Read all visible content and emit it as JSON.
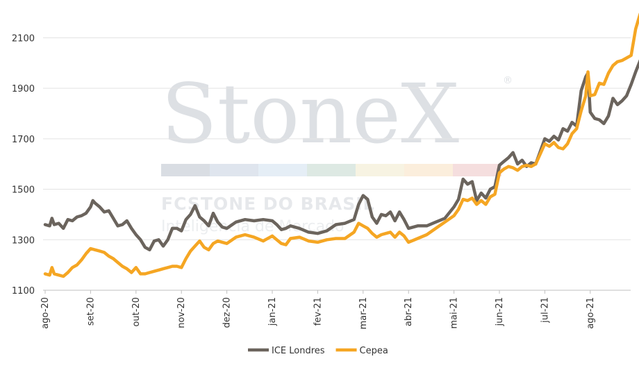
{
  "watermark": {
    "brand": "StoneX",
    "registered": "®",
    "company": "FCSTONE DO BRASIL",
    "tagline": "Inteligência de Mercado",
    "stripe_colors": [
      "#d9dde3",
      "#dfe5ee",
      "#e5eef6",
      "#dde9e3",
      "#f7f3e2",
      "#fbeedc",
      "#f5dede"
    ]
  },
  "chart_data": {
    "type": "line",
    "title": "",
    "xlabel": "",
    "ylabel": "",
    "ylim": [
      1100,
      2200
    ],
    "yticks": [
      1100,
      1300,
      1500,
      1700,
      1900,
      2100
    ],
    "ytick_labels": [
      "1100",
      "1300",
      "1500",
      "1700",
      "1900",
      "2100"
    ],
    "xtick_labels": [
      "ago-20",
      "set-20",
      "out-20",
      "nov-20",
      "dez-20",
      "jan-21",
      "fev-21",
      "mar-21",
      "abr-21",
      "mai-21",
      "jun-21",
      "jul-21",
      "ago-21"
    ],
    "grid": "horizontal",
    "legend_position": "bottom",
    "series": [
      {
        "name": "ICE Londres",
        "color": "#6b645d",
        "values": [
          [
            0,
            1360
          ],
          [
            0.1,
            1355
          ],
          [
            0.15,
            1385
          ],
          [
            0.2,
            1360
          ],
          [
            0.3,
            1365
          ],
          [
            0.4,
            1345
          ],
          [
            0.5,
            1380
          ],
          [
            0.6,
            1375
          ],
          [
            0.7,
            1390
          ],
          [
            0.8,
            1395
          ],
          [
            0.9,
            1405
          ],
          [
            1.0,
            1430
          ],
          [
            1.05,
            1455
          ],
          [
            1.1,
            1445
          ],
          [
            1.2,
            1430
          ],
          [
            1.3,
            1410
          ],
          [
            1.4,
            1415
          ],
          [
            1.5,
            1385
          ],
          [
            1.6,
            1355
          ],
          [
            1.7,
            1360
          ],
          [
            1.8,
            1375
          ],
          [
            1.9,
            1345
          ],
          [
            2.0,
            1320
          ],
          [
            2.1,
            1300
          ],
          [
            2.2,
            1270
          ],
          [
            2.3,
            1260
          ],
          [
            2.4,
            1295
          ],
          [
            2.5,
            1300
          ],
          [
            2.6,
            1275
          ],
          [
            2.7,
            1300
          ],
          [
            2.8,
            1345
          ],
          [
            2.9,
            1345
          ],
          [
            3.0,
            1335
          ],
          [
            3.1,
            1380
          ],
          [
            3.2,
            1400
          ],
          [
            3.3,
            1435
          ],
          [
            3.4,
            1390
          ],
          [
            3.5,
            1375
          ],
          [
            3.6,
            1355
          ],
          [
            3.7,
            1405
          ],
          [
            3.8,
            1370
          ],
          [
            3.9,
            1350
          ],
          [
            4.0,
            1345
          ],
          [
            4.2,
            1370
          ],
          [
            4.4,
            1380
          ],
          [
            4.6,
            1375
          ],
          [
            4.8,
            1380
          ],
          [
            5.0,
            1375
          ],
          [
            5.1,
            1360
          ],
          [
            5.2,
            1340
          ],
          [
            5.3,
            1345
          ],
          [
            5.4,
            1355
          ],
          [
            5.6,
            1345
          ],
          [
            5.8,
            1330
          ],
          [
            6.0,
            1325
          ],
          [
            6.2,
            1335
          ],
          [
            6.4,
            1360
          ],
          [
            6.6,
            1365
          ],
          [
            6.8,
            1380
          ],
          [
            6.9,
            1440
          ],
          [
            7.0,
            1475
          ],
          [
            7.1,
            1460
          ],
          [
            7.2,
            1390
          ],
          [
            7.3,
            1365
          ],
          [
            7.4,
            1400
          ],
          [
            7.5,
            1395
          ],
          [
            7.6,
            1410
          ],
          [
            7.7,
            1375
          ],
          [
            7.8,
            1410
          ],
          [
            7.9,
            1380
          ],
          [
            8.0,
            1345
          ],
          [
            8.2,
            1355
          ],
          [
            8.4,
            1355
          ],
          [
            8.6,
            1370
          ],
          [
            8.8,
            1385
          ],
          [
            9.0,
            1430
          ],
          [
            9.1,
            1460
          ],
          [
            9.2,
            1540
          ],
          [
            9.3,
            1520
          ],
          [
            9.4,
            1530
          ],
          [
            9.5,
            1455
          ],
          [
            9.6,
            1485
          ],
          [
            9.7,
            1465
          ],
          [
            9.8,
            1500
          ],
          [
            9.9,
            1510
          ],
          [
            10.0,
            1595
          ],
          [
            10.1,
            1610
          ],
          [
            10.2,
            1625
          ],
          [
            10.3,
            1645
          ],
          [
            10.4,
            1600
          ],
          [
            10.5,
            1615
          ],
          [
            10.6,
            1590
          ],
          [
            10.7,
            1605
          ],
          [
            10.8,
            1600
          ],
          [
            10.9,
            1650
          ],
          [
            11.0,
            1700
          ],
          [
            11.1,
            1690
          ],
          [
            11.2,
            1710
          ],
          [
            11.3,
            1695
          ],
          [
            11.4,
            1740
          ],
          [
            11.5,
            1730
          ],
          [
            11.6,
            1765
          ],
          [
            11.7,
            1750
          ],
          [
            11.8,
            1890
          ],
          [
            11.9,
            1945
          ],
          [
            11.95,
            1960
          ],
          [
            12.0,
            1805
          ],
          [
            12.1,
            1780
          ],
          [
            12.2,
            1775
          ],
          [
            12.3,
            1760
          ],
          [
            12.4,
            1790
          ],
          [
            12.5,
            1860
          ],
          [
            12.6,
            1835
          ],
          [
            12.7,
            1850
          ],
          [
            12.8,
            1870
          ],
          [
            12.9,
            1915
          ],
          [
            13.0,
            1965
          ],
          [
            13.1,
            2010
          ]
        ]
      },
      {
        "name": "Cepea",
        "color": "#f5a623",
        "values": [
          [
            0,
            1165
          ],
          [
            0.1,
            1160
          ],
          [
            0.15,
            1190
          ],
          [
            0.2,
            1165
          ],
          [
            0.3,
            1160
          ],
          [
            0.4,
            1155
          ],
          [
            0.5,
            1170
          ],
          [
            0.6,
            1190
          ],
          [
            0.7,
            1200
          ],
          [
            0.8,
            1220
          ],
          [
            0.9,
            1245
          ],
          [
            1.0,
            1265
          ],
          [
            1.1,
            1260
          ],
          [
            1.2,
            1255
          ],
          [
            1.3,
            1250
          ],
          [
            1.4,
            1235
          ],
          [
            1.5,
            1225
          ],
          [
            1.6,
            1210
          ],
          [
            1.7,
            1195
          ],
          [
            1.8,
            1185
          ],
          [
            1.9,
            1170
          ],
          [
            2.0,
            1190
          ],
          [
            2.1,
            1165
          ],
          [
            2.2,
            1165
          ],
          [
            2.3,
            1170
          ],
          [
            2.4,
            1175
          ],
          [
            2.5,
            1180
          ],
          [
            2.6,
            1185
          ],
          [
            2.7,
            1190
          ],
          [
            2.8,
            1195
          ],
          [
            2.9,
            1195
          ],
          [
            3.0,
            1190
          ],
          [
            3.1,
            1225
          ],
          [
            3.2,
            1255
          ],
          [
            3.3,
            1275
          ],
          [
            3.4,
            1295
          ],
          [
            3.5,
            1270
          ],
          [
            3.6,
            1260
          ],
          [
            3.7,
            1285
          ],
          [
            3.8,
            1295
          ],
          [
            3.9,
            1290
          ],
          [
            4.0,
            1285
          ],
          [
            4.2,
            1310
          ],
          [
            4.4,
            1320
          ],
          [
            4.6,
            1310
          ],
          [
            4.8,
            1295
          ],
          [
            5.0,
            1315
          ],
          [
            5.1,
            1300
          ],
          [
            5.2,
            1285
          ],
          [
            5.3,
            1280
          ],
          [
            5.4,
            1305
          ],
          [
            5.6,
            1310
          ],
          [
            5.8,
            1295
          ],
          [
            6.0,
            1290
          ],
          [
            6.2,
            1300
          ],
          [
            6.4,
            1305
          ],
          [
            6.6,
            1305
          ],
          [
            6.8,
            1330
          ],
          [
            6.9,
            1365
          ],
          [
            7.0,
            1355
          ],
          [
            7.1,
            1345
          ],
          [
            7.2,
            1325
          ],
          [
            7.3,
            1310
          ],
          [
            7.4,
            1320
          ],
          [
            7.5,
            1325
          ],
          [
            7.6,
            1330
          ],
          [
            7.7,
            1310
          ],
          [
            7.8,
            1330
          ],
          [
            7.9,
            1315
          ],
          [
            8.0,
            1290
          ],
          [
            8.2,
            1305
          ],
          [
            8.4,
            1320
          ],
          [
            8.6,
            1345
          ],
          [
            8.8,
            1370
          ],
          [
            9.0,
            1395
          ],
          [
            9.1,
            1420
          ],
          [
            9.2,
            1460
          ],
          [
            9.3,
            1455
          ],
          [
            9.4,
            1465
          ],
          [
            9.5,
            1440
          ],
          [
            9.6,
            1455
          ],
          [
            9.7,
            1440
          ],
          [
            9.8,
            1470
          ],
          [
            9.9,
            1480
          ],
          [
            10.0,
            1565
          ],
          [
            10.1,
            1580
          ],
          [
            10.2,
            1590
          ],
          [
            10.3,
            1585
          ],
          [
            10.4,
            1575
          ],
          [
            10.5,
            1590
          ],
          [
            10.6,
            1595
          ],
          [
            10.7,
            1590
          ],
          [
            10.8,
            1600
          ],
          [
            10.9,
            1640
          ],
          [
            11.0,
            1680
          ],
          [
            11.1,
            1670
          ],
          [
            11.2,
            1685
          ],
          [
            11.3,
            1665
          ],
          [
            11.4,
            1660
          ],
          [
            11.5,
            1680
          ],
          [
            11.6,
            1720
          ],
          [
            11.7,
            1740
          ],
          [
            11.8,
            1810
          ],
          [
            11.9,
            1870
          ],
          [
            11.95,
            1965
          ],
          [
            12.0,
            1870
          ],
          [
            12.1,
            1875
          ],
          [
            12.2,
            1920
          ],
          [
            12.3,
            1915
          ],
          [
            12.4,
            1960
          ],
          [
            12.5,
            1990
          ],
          [
            12.6,
            2005
          ],
          [
            12.7,
            2010
          ],
          [
            12.8,
            2020
          ],
          [
            12.9,
            2030
          ],
          [
            13.0,
            2135
          ],
          [
            13.1,
            2195
          ]
        ]
      }
    ]
  }
}
